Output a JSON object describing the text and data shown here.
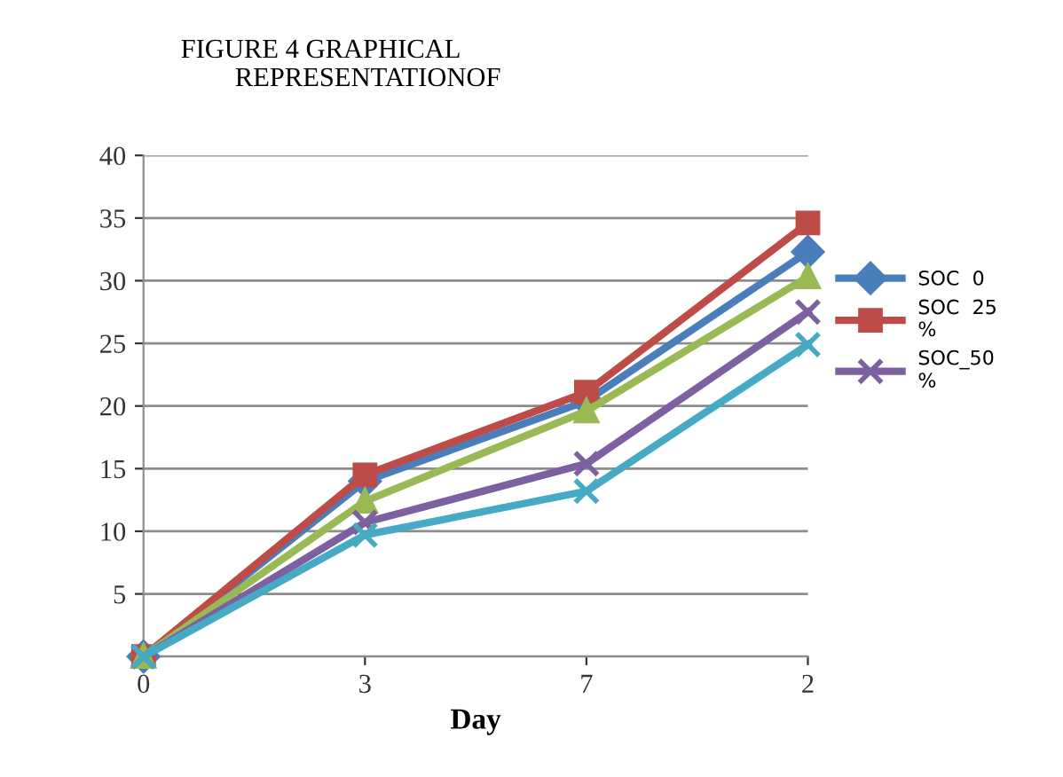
{
  "chart_data": {
    "type": "line",
    "title": "FIGURE 4 GRAPHICAL\n        REPRESENTATIONOF",
    "xlabel": "Day",
    "categories": [
      "0",
      "3",
      "7",
      "2"
    ],
    "ylim": [
      0,
      40
    ],
    "yticks": [
      {
        "value": 0,
        "label": null
      },
      5,
      10,
      15,
      20,
      25,
      30,
      35,
      40
    ],
    "grid": "y",
    "legend": "right",
    "series": [
      {
        "name": "SOC  0",
        "color": "#4a7ebb",
        "marker": "diamond",
        "values": [
          0,
          14.0,
          20.4,
          32.3
        ]
      },
      {
        "name": "SOC  25\n%",
        "color": "#be4b48",
        "marker": "square",
        "values": [
          0,
          14.5,
          21.1,
          34.6
        ]
      },
      {
        "color": "#98b954",
        "marker": "triangle",
        "values": [
          0,
          12.4,
          19.6,
          30.3
        ]
      },
      {
        "name": "SOC_50\n%",
        "color": "#7d60a0",
        "marker": "cross",
        "values": [
          0,
          10.7,
          15.4,
          27.5
        ]
      },
      {
        "color": "#46aac5",
        "marker": "cross",
        "values": [
          0,
          9.7,
          13.2,
          24.9
        ]
      }
    ]
  }
}
